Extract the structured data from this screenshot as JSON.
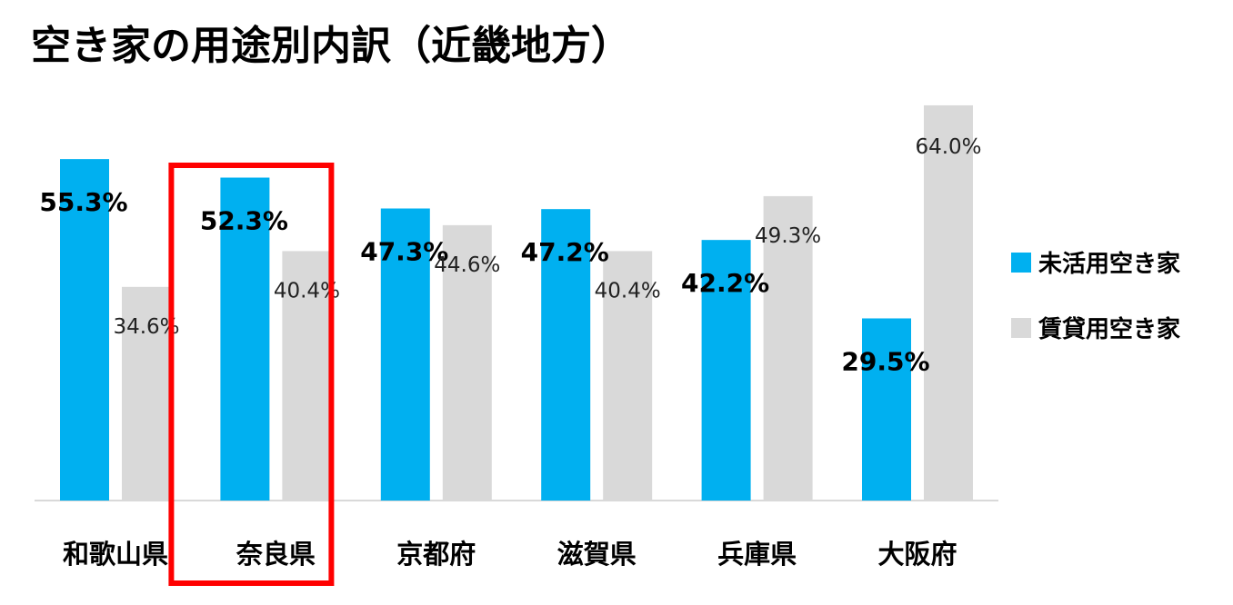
{
  "title": "空き家の用途別内訳（近畿地方）",
  "colors": {
    "series1": "#00B0F0",
    "series2": "#D9D9D9",
    "highlight": "#FF0000",
    "axis": "#D9D9D9"
  },
  "chart_data": {
    "type": "bar",
    "categories": [
      "和歌山県",
      "奈良県",
      "京都府",
      "滋賀県",
      "兵庫県",
      "大阪府"
    ],
    "series": [
      {
        "name": "未活用空き家",
        "values": [
          55.3,
          52.3,
          47.3,
          47.2,
          42.2,
          29.5
        ],
        "labels": [
          "55.3%",
          "52.3%",
          "47.3%",
          "47.2%",
          "42.2%",
          "29.5%"
        ]
      },
      {
        "name": "賃貸用空き家",
        "values": [
          34.6,
          40.4,
          44.6,
          40.4,
          49.3,
          64.0
        ],
        "labels": [
          "34.6%",
          "40.4%",
          "44.6%",
          "40.4%",
          "49.3%",
          "64.0%"
        ]
      }
    ],
    "highlighted_category": "奈良県",
    "ylim": [
      0,
      69
    ],
    "grid": false,
    "legend_position": "right"
  }
}
